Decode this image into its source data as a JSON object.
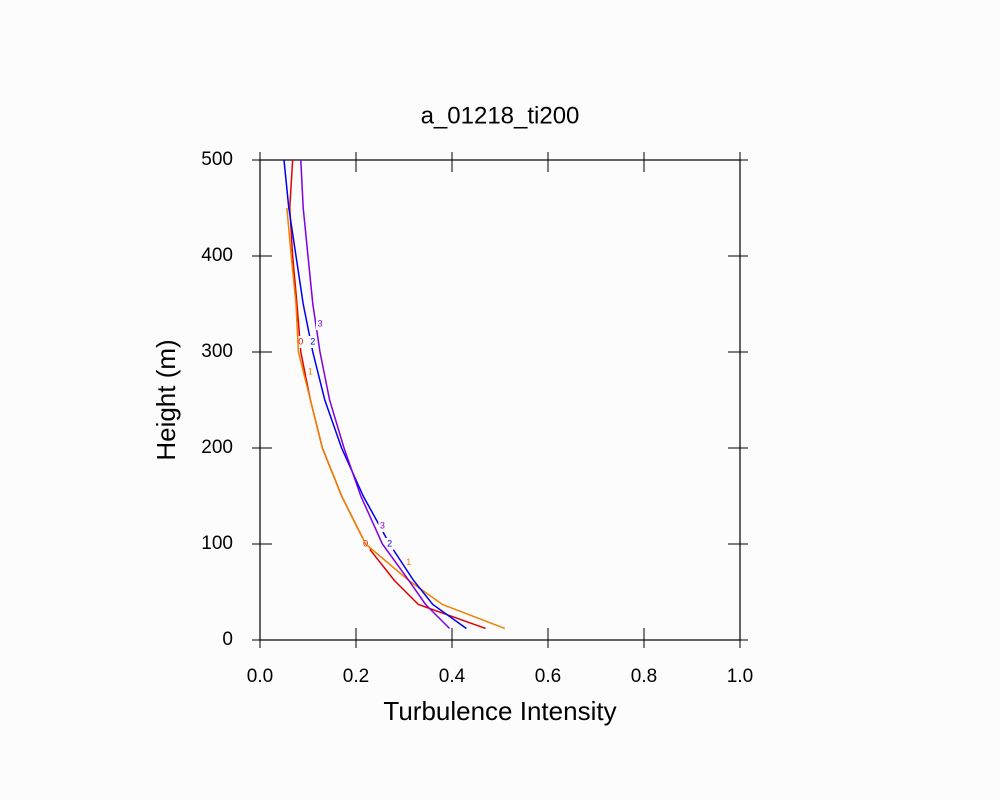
{
  "chart_data": {
    "type": "line",
    "title": "a_01218_ti200",
    "x_label": "Turbulence Intensity",
    "y_label": "Height (m)",
    "y": [
      12,
      37,
      62,
      100,
      150,
      200,
      250,
      300,
      350,
      400,
      450,
      500
    ],
    "series": [
      {
        "name": "0",
        "color": "#e00000",
        "values": [
          0.47,
          0.33,
          0.28,
          0.22,
          0.17,
          0.13,
          0.105,
          0.085,
          0.077,
          0.068,
          0.062,
          0.068
        ]
      },
      {
        "name": "1",
        "color": "#f08000",
        "values": [
          0.51,
          0.38,
          0.31,
          0.22,
          0.17,
          0.13,
          0.105,
          0.08,
          0.075,
          0.065,
          0.056,
          null
        ]
      },
      {
        "name": "2",
        "color": "#0000f0",
        "values": [
          0.43,
          0.36,
          0.32,
          0.27,
          0.215,
          0.17,
          0.135,
          0.11,
          0.09,
          0.075,
          0.06,
          0.05
        ]
      },
      {
        "name": "3",
        "color": "#8000e0",
        "values": [
          0.395,
          0.345,
          0.31,
          0.255,
          0.21,
          0.175,
          0.145,
          0.125,
          0.11,
          0.1,
          0.09,
          0.085
        ]
      }
    ],
    "xlim": [
      0,
      1
    ],
    "ylim": [
      0,
      500
    ],
    "xticks": [
      {
        "value": 0,
        "label": "0.0"
      },
      {
        "value": 0.2,
        "label": "0.2"
      },
      {
        "value": 0.4,
        "label": "0.4"
      },
      {
        "value": 0.6,
        "label": "0.6"
      },
      {
        "value": 0.8,
        "label": "0.8"
      },
      {
        "value": 1,
        "label": "1.0"
      }
    ],
    "yticks": [
      0,
      100,
      200,
      300,
      400,
      500
    ]
  }
}
